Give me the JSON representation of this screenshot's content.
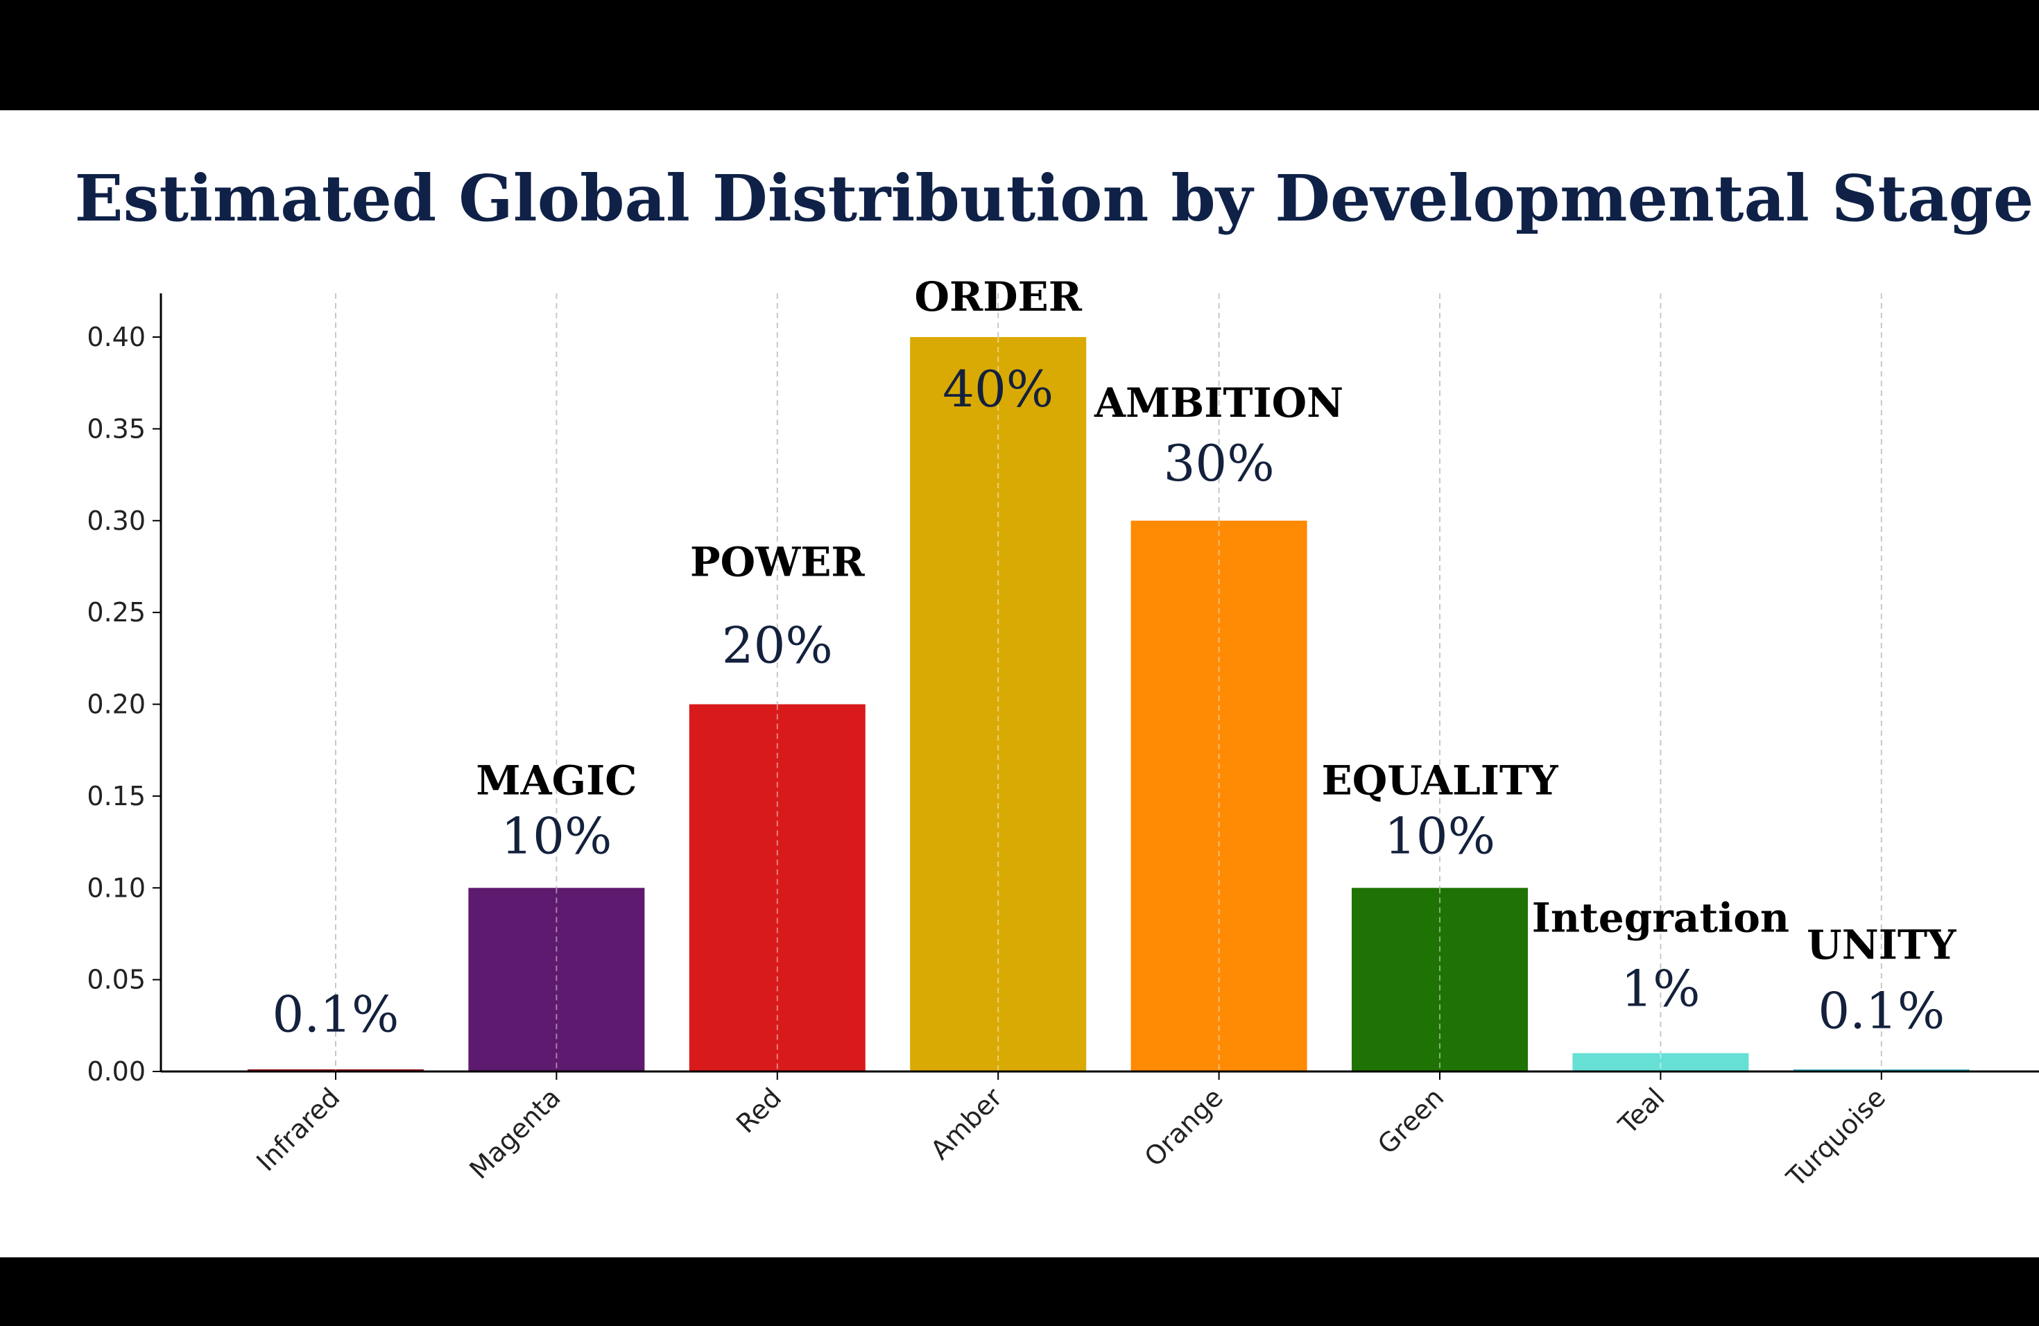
{
  "chart_data": {
    "type": "bar",
    "title": "Estimated Global Distribution by Developmental Stage",
    "xlabel": "",
    "ylabel": "",
    "ylim": [
      0,
      0.42
    ],
    "yticks": [
      "0.00",
      "0.05",
      "0.10",
      "0.15",
      "0.20",
      "0.25",
      "0.30",
      "0.35",
      "0.40"
    ],
    "grid": "vertical dashed",
    "categories": [
      "Infrared",
      "Magenta",
      "Red",
      "Amber",
      "Orange",
      "Green",
      "Teal",
      "Turquoise"
    ],
    "values": [
      0.001,
      0.1,
      0.2,
      0.4,
      0.3,
      0.1,
      0.01,
      0.001
    ],
    "colors": [
      "#8b0000",
      "#5e1a6e",
      "#d91a1a",
      "#d9aa04",
      "#ff8a04",
      "#1f7304",
      "#66e0d4",
      "#3fb6c4"
    ],
    "stage_labels": [
      "",
      "MAGIC",
      "POWER",
      "ORDER",
      "AMBITION",
      "EQUALITY",
      "Integration",
      "UNITY"
    ],
    "percent_labels": [
      "0.1%",
      "10%",
      "20%",
      "40%",
      "30%",
      "10%",
      "1%",
      "0.1%"
    ]
  }
}
